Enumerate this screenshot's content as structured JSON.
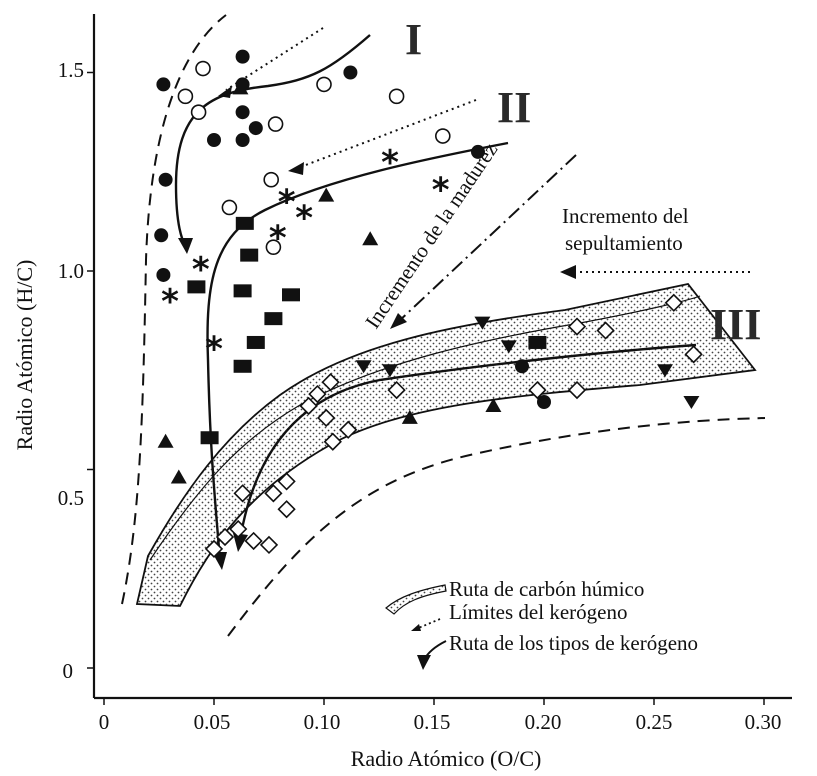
{
  "chart_data": {
    "type": "scatter",
    "title": "",
    "xlabel": "Radio Atómico (O/C)",
    "ylabel": "Radio Atómico (H/C)",
    "xlim": [
      0,
      0.3
    ],
    "ylim": [
      -0.08,
      1.65
    ],
    "x_ticks": [
      0,
      0.05,
      0.1,
      0.15,
      0.2,
      0.25,
      0.3
    ],
    "x_tick_labels": [
      "0",
      "0.05",
      "0.10",
      "0.15",
      "0.20",
      "0.25",
      "0.30"
    ],
    "y_ticks": [
      0,
      0.5,
      1.0,
      1.5
    ],
    "y_tick_labels": [
      "0",
      "0.5",
      "1.0",
      "1.5"
    ],
    "grid": false,
    "legend_position": "bottom-right",
    "type_labels": [
      "I",
      "II",
      "III"
    ],
    "annotations": {
      "maturity": "Incremento de la madurez",
      "burial_line1": "Incremento del",
      "burial_line2": "sepultamiento"
    },
    "legend": [
      {
        "symbol": "band",
        "label": "Ruta de carbón húmico"
      },
      {
        "symbol": "dotted-arrow",
        "label": "Límites del kerógeno"
      },
      {
        "symbol": "solid-arrow",
        "label": "Ruta de los tipos de kerógeno"
      }
    ],
    "series": [
      {
        "marker": "filled-circle",
        "points": [
          [
            0.027,
            1.47
          ],
          [
            0.063,
            1.54
          ],
          [
            0.063,
            1.47
          ],
          [
            0.063,
            1.4
          ],
          [
            0.063,
            1.33
          ],
          [
            0.05,
            1.33
          ],
          [
            0.069,
            1.36
          ],
          [
            0.112,
            1.5
          ],
          [
            0.028,
            1.23
          ],
          [
            0.026,
            1.09
          ],
          [
            0.027,
            0.99
          ],
          [
            0.17,
            1.3
          ],
          [
            0.19,
            0.76
          ],
          [
            0.2,
            0.67
          ]
        ]
      },
      {
        "marker": "open-circle",
        "points": [
          [
            0.045,
            1.51
          ],
          [
            0.037,
            1.44
          ],
          [
            0.043,
            1.4
          ],
          [
            0.078,
            1.37
          ],
          [
            0.1,
            1.47
          ],
          [
            0.133,
            1.44
          ],
          [
            0.154,
            1.34
          ],
          [
            0.076,
            1.23
          ],
          [
            0.057,
            1.16
          ],
          [
            0.077,
            1.06
          ]
        ]
      },
      {
        "marker": "asterisk",
        "points": [
          [
            0.13,
            1.28
          ],
          [
            0.153,
            1.21
          ],
          [
            0.083,
            1.18
          ],
          [
            0.091,
            1.14
          ],
          [
            0.079,
            1.09
          ],
          [
            0.044,
            1.01
          ],
          [
            0.03,
            0.93
          ],
          [
            0.05,
            0.81
          ]
        ]
      },
      {
        "marker": "filled-square",
        "points": [
          [
            0.064,
            1.12
          ],
          [
            0.066,
            1.04
          ],
          [
            0.042,
            0.96
          ],
          [
            0.063,
            0.95
          ],
          [
            0.085,
            0.94
          ],
          [
            0.077,
            0.88
          ],
          [
            0.069,
            0.82
          ],
          [
            0.063,
            0.76
          ],
          [
            0.048,
            0.58
          ],
          [
            0.197,
            0.82
          ]
        ]
      },
      {
        "marker": "filled-triangle",
        "points": [
          [
            0.062,
            1.46
          ],
          [
            0.101,
            1.19
          ],
          [
            0.121,
            1.08
          ],
          [
            0.028,
            0.57
          ],
          [
            0.034,
            0.48
          ],
          [
            0.139,
            0.63
          ],
          [
            0.177,
            0.66
          ]
        ]
      },
      {
        "marker": "inverted-triangle",
        "points": [
          [
            0.172,
            0.87
          ],
          [
            0.184,
            0.81
          ],
          [
            0.118,
            0.76
          ],
          [
            0.13,
            0.75
          ],
          [
            0.255,
            0.75
          ],
          [
            0.267,
            0.67
          ]
        ]
      },
      {
        "marker": "open-diamond",
        "points": [
          [
            0.259,
            0.92
          ],
          [
            0.215,
            0.86
          ],
          [
            0.228,
            0.85
          ],
          [
            0.268,
            0.79
          ],
          [
            0.103,
            0.72
          ],
          [
            0.097,
            0.69
          ],
          [
            0.133,
            0.7
          ],
          [
            0.197,
            0.7
          ],
          [
            0.215,
            0.7
          ],
          [
            0.093,
            0.66
          ],
          [
            0.101,
            0.63
          ],
          [
            0.111,
            0.6
          ],
          [
            0.104,
            0.57
          ],
          [
            0.063,
            0.44
          ],
          [
            0.077,
            0.44
          ],
          [
            0.083,
            0.47
          ],
          [
            0.083,
            0.4
          ],
          [
            0.061,
            0.35
          ],
          [
            0.055,
            0.33
          ],
          [
            0.068,
            0.32
          ],
          [
            0.075,
            0.31
          ],
          [
            0.05,
            0.3
          ]
        ]
      }
    ]
  }
}
